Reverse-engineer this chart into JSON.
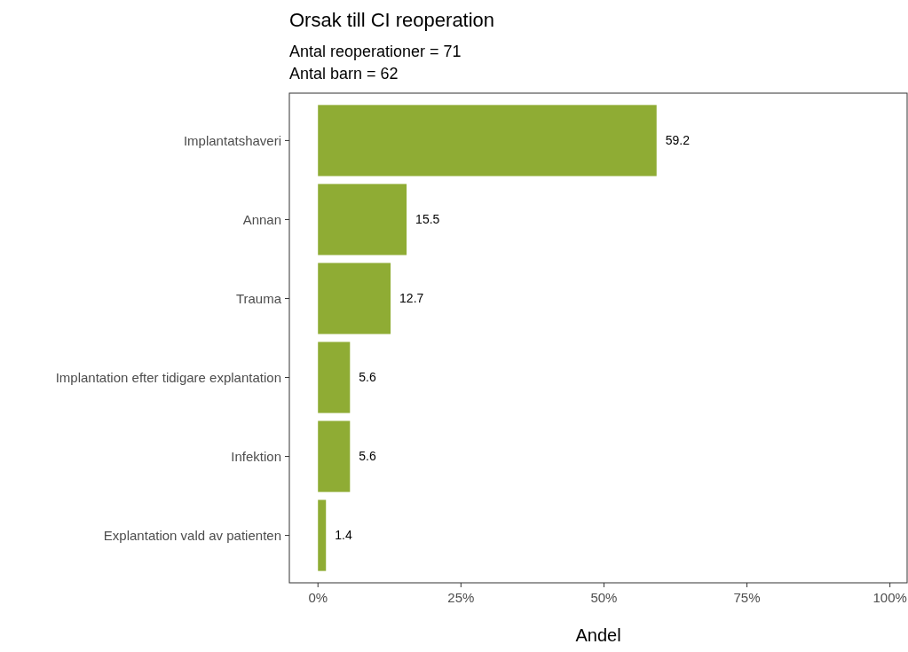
{
  "chart_data": {
    "type": "bar",
    "orientation": "horizontal",
    "title": "Orsak till CI reoperation",
    "subtitle": "Antal reoperationer = 71\nAntal barn = 62",
    "xlabel": "Andel",
    "categories": [
      "Implantatshaveri",
      "Annan",
      "Trauma",
      "Implantation efter tidigare explantation",
      "Infektion",
      "Explantation vald av patienten"
    ],
    "values": [
      59.2,
      15.5,
      12.7,
      5.6,
      5.6,
      1.4
    ],
    "color": "#8fac34",
    "xlim": [
      -5,
      103
    ],
    "xticks": [
      {
        "value": 0,
        "label": "0%"
      },
      {
        "value": 25,
        "label": "25%"
      },
      {
        "value": 50,
        "label": "50%"
      },
      {
        "value": 75,
        "label": "75%"
      },
      {
        "value": 100,
        "label": "100%"
      }
    ],
    "data_labels": true,
    "grid": false
  }
}
